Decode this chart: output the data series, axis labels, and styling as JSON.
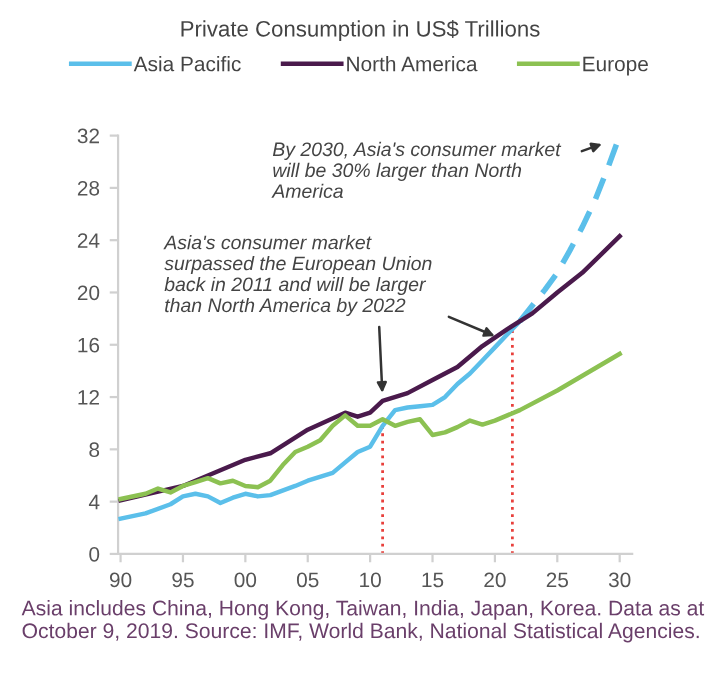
{
  "chart_data": {
    "type": "line",
    "title": "Private Consumption in US$ Trillions",
    "series": [
      {
        "name": "Asia Pacific",
        "color": "#5bbfea",
        "line_style": "solid",
        "x": [
          1990,
          1992,
          1994,
          1995,
          1996,
          1997,
          1998,
          1999,
          2000,
          2001,
          2002,
          2004,
          2005,
          2007,
          2008,
          2009,
          2010,
          2011,
          2012,
          2013,
          2014,
          2015,
          2016,
          2017,
          2018,
          2019,
          2020,
          2021,
          2022
        ],
        "values": [
          2.7,
          3.1,
          3.8,
          4.4,
          4.6,
          4.4,
          3.9,
          4.3,
          4.6,
          4.4,
          4.5,
          5.2,
          5.6,
          6.2,
          7.0,
          7.8,
          8.2,
          9.8,
          11.0,
          11.2,
          11.3,
          11.4,
          12.0,
          13.0,
          13.8,
          14.8,
          15.8,
          16.8,
          17.8
        ]
      },
      {
        "color": "#5bbfea",
        "line_style": "dashed",
        "x": [
          2022,
          2023,
          2024,
          2025,
          2026,
          2027,
          2028,
          2029,
          2030
        ],
        "values": [
          17.8,
          19.0,
          20.2,
          21.5,
          23.2,
          25.0,
          27.0,
          29.4,
          32.0
        ]
      },
      {
        "name": "North America",
        "color": "#4a1a4c",
        "line_style": "solid",
        "x": [
          1990,
          1995,
          1998,
          2000,
          2002,
          2005,
          2008,
          2009,
          2010,
          2011,
          2013,
          2015,
          2017,
          2019,
          2021,
          2023,
          2025,
          2027,
          2030
        ],
        "values": [
          4.1,
          5.2,
          6.4,
          7.2,
          7.7,
          9.5,
          10.8,
          10.5,
          10.8,
          11.7,
          12.3,
          13.3,
          14.3,
          15.9,
          17.2,
          18.4,
          20.0,
          21.5,
          24.3
        ]
      },
      {
        "name": "Europe",
        "color": "#8cc152",
        "line_style": "solid",
        "x": [
          1990,
          1992,
          1993,
          1994,
          1995,
          1996,
          1997,
          1998,
          1999,
          2000,
          2001,
          2002,
          2003,
          2004,
          2005,
          2006,
          2007,
          2008,
          2009,
          2010,
          2011,
          2012,
          2013,
          2014,
          2015,
          2016,
          2017,
          2018,
          2019,
          2020,
          2022,
          2025,
          2030
        ],
        "values": [
          4.2,
          4.6,
          5.0,
          4.7,
          5.2,
          5.5,
          5.8,
          5.4,
          5.6,
          5.2,
          5.1,
          5.6,
          6.8,
          7.8,
          8.2,
          8.7,
          9.8,
          10.6,
          9.8,
          9.8,
          10.3,
          9.8,
          10.1,
          10.3,
          9.1,
          9.3,
          9.7,
          10.2,
          9.9,
          10.2,
          11.0,
          12.5,
          15.3
        ]
      }
    ],
    "xlim": [
      1989.8,
      2031
    ],
    "xticks": [
      {
        "value": 1990,
        "label": "90"
      },
      {
        "value": 1995,
        "label": "95"
      },
      {
        "value": 2000,
        "label": "00"
      },
      {
        "value": 2005,
        "label": "05"
      },
      {
        "value": 2010,
        "label": "10"
      },
      {
        "value": 2015,
        "label": "15"
      },
      {
        "value": 2020,
        "label": "20"
      },
      {
        "value": 2025,
        "label": "25"
      },
      {
        "value": 2030,
        "label": "30"
      }
    ],
    "ylim": [
      0,
      32
    ],
    "yticks": [
      0,
      4,
      8,
      12,
      16,
      20,
      24,
      28,
      32
    ],
    "ref_lines": [
      {
        "axis": "x",
        "value": 2011,
        "color": "#e8403c",
        "line_style": "dotted"
      },
      {
        "axis": "x",
        "value": 2021.4,
        "color": "#e8403c",
        "line_style": "dotted"
      }
    ],
    "annotations": [
      {
        "text": "By 2030, Asia's consumer market will be 30% larger than North America",
        "x": 2029,
        "y": 31.5
      },
      {
        "text": "Asia's consumer market surpassed the European Union back in 2011 and will be larger than North America by 2022",
        "x": 2011,
        "y": 11.9
      },
      "Asia includes China, Hong Kong, Taiwan, India, Japan, Korea. Data as at October 9, 2019. Source: IMF, World Bank, National Statistical Agencies."
    ],
    "grid": false,
    "legend": "top",
    "marker": "none"
  }
}
